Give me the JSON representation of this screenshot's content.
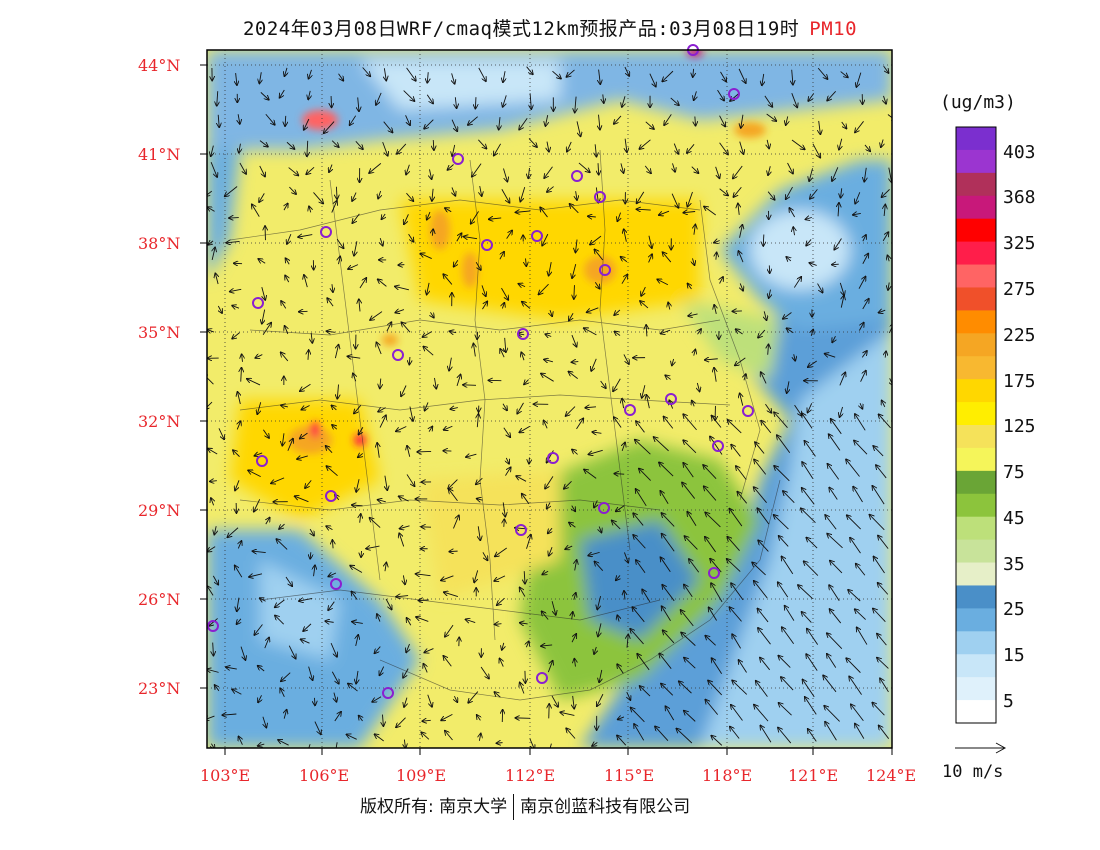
{
  "title": {
    "text": "2024年03月08日WRF/cmaq模式12km预报产品:03月08日19时",
    "pollutant": "PM10"
  },
  "legend": {
    "unit": "(ug/m3)",
    "labels": [
      "403",
      "368",
      "325",
      "275",
      "225",
      "175",
      "125",
      "75",
      "45",
      "35",
      "25",
      "15",
      "5"
    ],
    "colors": [
      "#7b2fcf",
      "#9b35d0",
      "#b0305a",
      "#c8187a",
      "#ff0000",
      "#ff1e4a",
      "#ff6464",
      "#f0502a",
      "#ff8c00",
      "#f5a623",
      "#f8b830",
      "#ffd700",
      "#ffee00",
      "#f5e25a",
      "#f5f55a",
      "#6aa536",
      "#8cc43c",
      "#bde07a",
      "#c8e39a",
      "#e6efc8",
      "#4a8fc8",
      "#6aaee0",
      "#9fd0f0",
      "#c8e6f8",
      "#dff1fb",
      "#ffffff"
    ]
  },
  "axes": {
    "lat_labels": [
      "44°N",
      "41°N",
      "38°N",
      "35°N",
      "32°N",
      "29°N",
      "26°N",
      "23°N"
    ],
    "lon_labels": [
      "103°E",
      "106°E",
      "109°E",
      "112°E",
      "115°E",
      "118°E",
      "121°E",
      "124°E"
    ]
  },
  "wind_scale": {
    "label": "10 m/s"
  },
  "copyright": {
    "left": "版权所有: 南京大学",
    "right": "南京创蓝科技有限公司"
  },
  "colors": {
    "axis_label": "#e8262b",
    "ocean": "#7fb6e4",
    "land_base": "#f2ec6a",
    "station": "#8a1fd0"
  }
}
